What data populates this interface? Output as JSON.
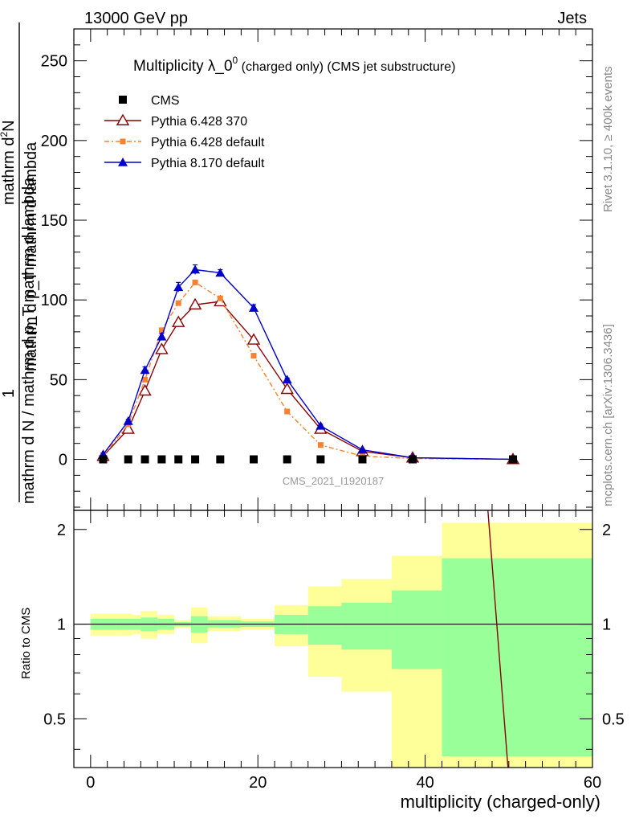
{
  "header": {
    "left": "13000 GeV pp",
    "right": "Jets"
  },
  "side_texts": {
    "rivet": "Rivet 3.1.10, ≥ 400k events",
    "mcplots": "mcplots.cern.ch [arXiv:1306.3436]"
  },
  "colors": {
    "cms": "#000000",
    "py6_370": "#8b0000",
    "py6_default": "#f58231",
    "py8": "#0000cc",
    "band_outer": "#ffff99",
    "band_inner": "#99ff99"
  },
  "chart_data": [
    {
      "type": "line",
      "title_main": "Multiplicity λ_0",
      "title_sup": "0",
      "title_sub": " (charged only) (CMS jet substructure)",
      "ylabel_top": "1",
      "ylabel_frac_num": "mathrm d",
      "ylabel_frac_num_sup": "2",
      "ylabel_frac_num_tail": "N",
      "ylabel_numerator": "mathrm d p_T mathrm d lambda",
      "ylabel_denominator": "mathrm d N / mathrm d p_T mathrm d lambda",
      "watermark": "CMS_2021_I1920187",
      "xlim": [
        -2,
        60
      ],
      "ylim": [
        -32,
        270
      ],
      "yticks": [
        0,
        50,
        100,
        150,
        200,
        250
      ],
      "legend_position": "top-left",
      "legend": [
        {
          "key": "cms",
          "label": "CMS"
        },
        {
          "key": "py6_370",
          "label": "Pythia 6.428 370"
        },
        {
          "key": "py6_default",
          "label": "Pythia 6.428 default"
        },
        {
          "key": "py8",
          "label": "Pythia 8.170 default"
        }
      ],
      "cms_x": [
        1.5,
        4.5,
        6.5,
        8.5,
        10.5,
        12.5,
        15.5,
        19.5,
        23.5,
        27.5,
        32.5,
        38.5,
        50.5
      ],
      "cms_y": [
        0,
        0,
        0,
        0,
        0,
        0,
        0,
        0,
        0,
        0,
        0,
        0,
        0
      ],
      "series": [
        {
          "name": "Pythia 6.428 370",
          "key": "py6_370",
          "x": [
            1.5,
            4.5,
            6.5,
            8.5,
            10.5,
            12.5,
            15.5,
            19.5,
            23.5,
            27.5,
            32.5,
            38.5,
            50.5
          ],
          "y": [
            2,
            19,
            43,
            69,
            86,
            97,
            99,
            75,
            44,
            19,
            5,
            1,
            0
          ]
        },
        {
          "name": "Pythia 6.428 default",
          "key": "py6_default",
          "x": [
            1.5,
            4.5,
            6.5,
            8.5,
            10.5,
            12.5,
            15.5,
            19.5,
            23.5,
            27.5,
            32.5,
            38.5,
            50.5
          ],
          "y": [
            2,
            22,
            50,
            81,
            98,
            111,
            101,
            65,
            30,
            9,
            2,
            0.5,
            0
          ]
        },
        {
          "name": "Pythia 8.170 default",
          "key": "py8",
          "x": [
            1.5,
            4.5,
            6.5,
            8.5,
            10.5,
            12.5,
            15.5,
            19.5,
            23.5,
            27.5,
            32.5,
            38.5,
            50.5
          ],
          "y": [
            3,
            24,
            56,
            77,
            108,
            119,
            117,
            95,
            50,
            21,
            6,
            1,
            0
          ],
          "err": [
            1,
            1,
            2,
            2,
            3,
            3,
            2,
            2,
            1,
            1,
            0.5,
            0.2,
            0.1
          ]
        }
      ]
    },
    {
      "type": "area",
      "ylabel": "Ratio to CMS",
      "xlabel": "multiplicity (charged-only)",
      "xlim": [
        -2,
        60
      ],
      "xticks": [
        0,
        20,
        40,
        60
      ],
      "ylim": [
        0.35,
        2.3
      ],
      "yticks_labeled": [
        0.5,
        1,
        2
      ],
      "bins": [
        {
          "lo": 0,
          "hi": 3,
          "outer": [
            0.92,
            1.08
          ],
          "inner": [
            0.96,
            1.04
          ]
        },
        {
          "lo": 3,
          "hi": 5,
          "outer": [
            0.92,
            1.08
          ],
          "inner": [
            0.96,
            1.04
          ]
        },
        {
          "lo": 5,
          "hi": 6,
          "outer": [
            0.93,
            1.07
          ],
          "inner": [
            0.96,
            1.04
          ]
        },
        {
          "lo": 6,
          "hi": 8,
          "outer": [
            0.9,
            1.1
          ],
          "inner": [
            0.95,
            1.05
          ]
        },
        {
          "lo": 8,
          "hi": 10,
          "outer": [
            0.93,
            1.07
          ],
          "inner": [
            0.96,
            1.04
          ]
        },
        {
          "lo": 10,
          "hi": 12,
          "outer": [
            0.97,
            1.03
          ],
          "inner": [
            0.985,
            1.015
          ]
        },
        {
          "lo": 12,
          "hi": 14,
          "outer": [
            0.87,
            1.13
          ],
          "inner": [
            0.94,
            1.06
          ]
        },
        {
          "lo": 14,
          "hi": 18,
          "outer": [
            0.95,
            1.06
          ],
          "inner": [
            0.975,
            1.03
          ]
        },
        {
          "lo": 18,
          "hi": 22,
          "outer": [
            0.96,
            1.04
          ],
          "inner": [
            0.98,
            1.02
          ]
        },
        {
          "lo": 22,
          "hi": 26,
          "outer": [
            0.85,
            1.15
          ],
          "inner": [
            0.93,
            1.07
          ]
        },
        {
          "lo": 26,
          "hi": 30,
          "outer": [
            0.68,
            1.32
          ],
          "inner": [
            0.86,
            1.14
          ]
        },
        {
          "lo": 30,
          "hi": 36,
          "outer": [
            0.61,
            1.39
          ],
          "inner": [
            0.83,
            1.17
          ]
        },
        {
          "lo": 36,
          "hi": 42,
          "outer": [
            0.35,
            1.65
          ],
          "inner": [
            0.72,
            1.28
          ]
        },
        {
          "lo": 42,
          "hi": 60,
          "outer": [
            0.35,
            2.1
          ],
          "inner": [
            0.38,
            1.62
          ]
        }
      ],
      "ratio_line": {
        "key": "py6_370",
        "x": [
          47.5,
          49.9
        ],
        "y": [
          2.3,
          0.35
        ]
      }
    }
  ]
}
